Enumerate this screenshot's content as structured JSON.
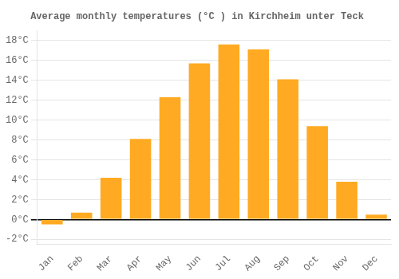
{
  "chart_data": {
    "type": "bar",
    "title": "Average monthly temperatures (°C ) in Kirchheim unter Teck",
    "categories": [
      "Jan",
      "Feb",
      "Mar",
      "Apr",
      "May",
      "Jun",
      "Jul",
      "Aug",
      "Sep",
      "Oct",
      "Nov",
      "Dec"
    ],
    "values": [
      -0.5,
      0.7,
      4.2,
      8.1,
      12.3,
      15.7,
      17.6,
      17.1,
      14.1,
      9.4,
      3.8,
      0.5
    ],
    "color": "#FFAA22",
    "ylim": [
      -2.5,
      19.0
    ],
    "yticks": [
      {
        "value": -2,
        "label": "-2°C"
      },
      {
        "value": 0,
        "label": "0°C"
      },
      {
        "value": 2,
        "label": "2°C"
      },
      {
        "value": 4,
        "label": "4°C"
      },
      {
        "value": 6,
        "label": "6°C"
      },
      {
        "value": 8,
        "label": "8°C"
      },
      {
        "value": 10,
        "label": "10°C"
      },
      {
        "value": 12,
        "label": "12°C"
      },
      {
        "value": 14,
        "label": "14°C"
      },
      {
        "value": 16,
        "label": "16°C"
      },
      {
        "value": 18,
        "label": "18°C"
      }
    ],
    "grid": true
  }
}
